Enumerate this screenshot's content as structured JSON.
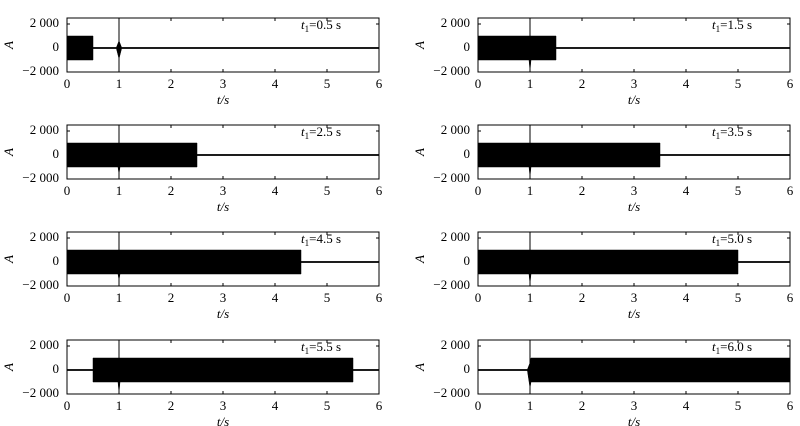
{
  "chart_data": [
    {
      "type": "area",
      "annotation": {
        "var": "t",
        "sub": "1",
        "text": "=0.5 s"
      },
      "ylabel": "A",
      "xlabel": "t/s",
      "color": "#000000",
      "xlim": [
        0,
        6
      ],
      "ylim": [
        -2000,
        2500
      ],
      "xticks": [
        0,
        1,
        2,
        3,
        4,
        5,
        6
      ],
      "yticks": [
        {
          "value": -2000,
          "label": "−2 000"
        },
        0,
        {
          "value": 2000,
          "label": "2 000"
        }
      ],
      "vline": 1,
      "x": [
        0,
        0.5,
        0.5,
        0.95,
        1,
        1.05,
        1.05,
        6
      ],
      "upper": [
        1000,
        1000,
        50,
        50,
        600,
        50,
        50,
        50
      ],
      "lower": [
        -1000,
        -1000,
        -50,
        -50,
        -900,
        -50,
        -50,
        -50
      ]
    },
    {
      "type": "area",
      "annotation": {
        "var": "t",
        "sub": "1",
        "text": "=1.5 s"
      },
      "ylabel": "A",
      "xlabel": "t/s",
      "color": "#000000",
      "xlim": [
        0,
        6
      ],
      "ylim": [
        -2000,
        2500
      ],
      "xticks": [
        0,
        1,
        2,
        3,
        4,
        5,
        6
      ],
      "yticks": [
        {
          "value": -2000,
          "label": "−2 000"
        },
        0,
        {
          "value": 2000,
          "label": "2 000"
        }
      ],
      "vline": 1,
      "x": [
        0,
        0.98,
        1,
        1.02,
        1.5,
        1.5,
        6
      ],
      "upper": [
        1000,
        1000,
        1000,
        1000,
        1000,
        50,
        50
      ],
      "lower": [
        -1000,
        -1000,
        -1900,
        -1000,
        -1000,
        -50,
        -50
      ]
    },
    {
      "type": "area",
      "annotation": {
        "var": "t",
        "sub": "1",
        "text": "=2.5 s"
      },
      "ylabel": "A",
      "xlabel": "t/s",
      "color": "#000000",
      "xlim": [
        0,
        6
      ],
      "ylim": [
        -2000,
        2500
      ],
      "xticks": [
        0,
        1,
        2,
        3,
        4,
        5,
        6
      ],
      "yticks": [
        {
          "value": -2000,
          "label": "−2 000"
        },
        0,
        {
          "value": 2000,
          "label": "2 000"
        }
      ],
      "vline": 1,
      "x": [
        0,
        0.98,
        1,
        1.02,
        2.5,
        2.5,
        6
      ],
      "upper": [
        1000,
        1000,
        1000,
        1000,
        1000,
        50,
        50
      ],
      "lower": [
        -1000,
        -1000,
        -1600,
        -1000,
        -1000,
        -50,
        -50
      ]
    },
    {
      "type": "area",
      "annotation": {
        "var": "t",
        "sub": "1",
        "text": "=3.5 s"
      },
      "ylabel": "A",
      "xlabel": "t/s",
      "color": "#000000",
      "xlim": [
        0,
        6
      ],
      "ylim": [
        -2000,
        2500
      ],
      "xticks": [
        0,
        1,
        2,
        3,
        4,
        5,
        6
      ],
      "yticks": [
        {
          "value": -2000,
          "label": "−2 000"
        },
        0,
        {
          "value": 2000,
          "label": "2 000"
        }
      ],
      "vline": 1,
      "x": [
        0,
        0.98,
        1,
        1.02,
        3.5,
        3.5,
        6
      ],
      "upper": [
        1000,
        1000,
        1000,
        1000,
        1000,
        50,
        50
      ],
      "lower": [
        -1000,
        -1000,
        -1800,
        -1000,
        -1000,
        -50,
        -50
      ]
    },
    {
      "type": "area",
      "annotation": {
        "var": "t",
        "sub": "1",
        "text": "=4.5 s"
      },
      "ylabel": "A",
      "xlabel": "t/s",
      "color": "#000000",
      "xlim": [
        0,
        6
      ],
      "ylim": [
        -2000,
        2500
      ],
      "xticks": [
        0,
        1,
        2,
        3,
        4,
        5,
        6
      ],
      "yticks": [
        {
          "value": -2000,
          "label": "−2 000"
        },
        0,
        {
          "value": 2000,
          "label": "2 000"
        }
      ],
      "vline": 1,
      "x": [
        0,
        0.98,
        1,
        1.02,
        4.5,
        4.5,
        6
      ],
      "upper": [
        1000,
        1000,
        1000,
        1000,
        1000,
        50,
        50
      ],
      "lower": [
        -1000,
        -1000,
        -1500,
        -1000,
        -1000,
        -50,
        -50
      ]
    },
    {
      "type": "area",
      "annotation": {
        "var": "t",
        "sub": "1",
        "text": "=5.0 s"
      },
      "ylabel": "A",
      "xlabel": "t/s",
      "color": "#000000",
      "xlim": [
        0,
        6
      ],
      "ylim": [
        -2000,
        2500
      ],
      "xticks": [
        0,
        1,
        2,
        3,
        4,
        5,
        6
      ],
      "yticks": [
        {
          "value": -2000,
          "label": "−2 000"
        },
        0,
        {
          "value": 2000,
          "label": "2 000"
        }
      ],
      "vline": 1,
      "x": [
        0,
        0.98,
        1,
        1.02,
        5,
        5,
        6
      ],
      "upper": [
        1000,
        1000,
        1000,
        1000,
        1000,
        50,
        50
      ],
      "lower": [
        -1000,
        -1000,
        -1800,
        -1000,
        -1000,
        -50,
        -50
      ]
    },
    {
      "type": "area",
      "annotation": {
        "var": "t",
        "sub": "1",
        "text": "=5.5 s"
      },
      "ylabel": "A",
      "xlabel": "t/s",
      "color": "#000000",
      "xlim": [
        0,
        6
      ],
      "ylim": [
        -2000,
        2500
      ],
      "xticks": [
        0,
        1,
        2,
        3,
        4,
        5,
        6
      ],
      "yticks": [
        {
          "value": -2000,
          "label": "−2 000"
        },
        0,
        {
          "value": 2000,
          "label": "2 000"
        }
      ],
      "vline": 1,
      "x": [
        0,
        0.5,
        0.5,
        0.98,
        1,
        1.02,
        5.5,
        5.5,
        6
      ],
      "upper": [
        50,
        50,
        1000,
        1000,
        1000,
        1000,
        1000,
        50,
        50
      ],
      "lower": [
        -50,
        -50,
        -1000,
        -1000,
        -1900,
        -1000,
        -1000,
        -50,
        -50
      ]
    },
    {
      "type": "area",
      "annotation": {
        "var": "t",
        "sub": "1",
        "text": "=6.0 s"
      },
      "ylabel": "A",
      "xlabel": "t/s",
      "color": "#000000",
      "xlim": [
        0,
        6
      ],
      "ylim": [
        -2000,
        2500
      ],
      "xticks": [
        0,
        1,
        2,
        3,
        4,
        5,
        6
      ],
      "yticks": [
        {
          "value": -2000,
          "label": "−2 000"
        },
        0,
        {
          "value": 2000,
          "label": "2 000"
        }
      ],
      "vline": 1,
      "x": [
        0,
        0.95,
        1,
        1.02,
        6
      ],
      "upper": [
        50,
        50,
        600,
        1000,
        1000
      ],
      "lower": [
        -50,
        -50,
        -1500,
        -1000,
        -1000
      ]
    }
  ]
}
